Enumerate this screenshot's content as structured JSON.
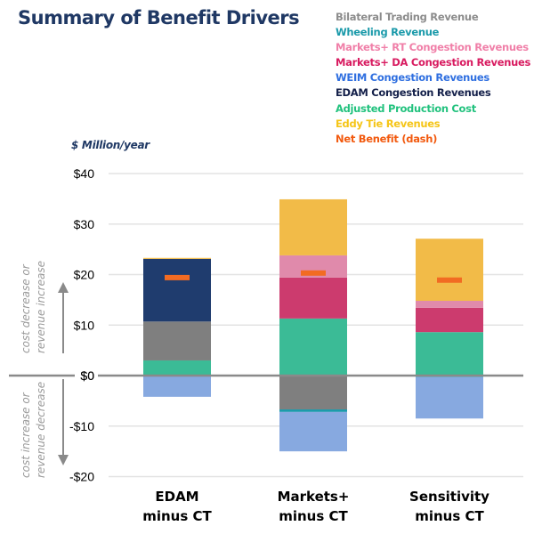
{
  "chart_data": {
    "type": "bar",
    "stacked": true,
    "title": "Summary of Benefit Drivers",
    "ylabel": "$ Million/year",
    "xlabel": "",
    "ylim": [
      -20,
      40
    ],
    "yticks": [
      40,
      30,
      20,
      10,
      0,
      -10,
      -20
    ],
    "ytick_labels": [
      "$40",
      "$30",
      "$20",
      "$10",
      "$0",
      "-$10",
      "-$20"
    ],
    "grid": true,
    "legend_position": "top-right",
    "categories": [
      {
        "line1": "EDAM",
        "line2": "minus CT"
      },
      {
        "line1": "Markets+",
        "line2": "minus CT"
      },
      {
        "line1": "Sensitivity",
        "line2": "minus CT"
      }
    ],
    "series": [
      {
        "name": "Adjusted Production Cost",
        "color": "#3bbb96",
        "values": [
          3.0,
          11.3,
          8.6
        ]
      },
      {
        "name": "Bilateral Trading Revenue",
        "color": "#7f7f7f",
        "values": [
          7.7,
          -6.7,
          0
        ]
      },
      {
        "name": "Wheeling Revenue",
        "color": "#1b9aaa",
        "values": [
          0,
          -0.5,
          -0.3
        ]
      },
      {
        "name": "WEIM Congestion Revenues",
        "color": "#87a9e0",
        "values": [
          -4.2,
          -7.8,
          -8.2
        ]
      },
      {
        "name": "EDAM Congestion Revenues",
        "color": "#1f3c6e",
        "values": [
          12.4,
          0,
          0
        ]
      },
      {
        "name": "Markets+ DA Congestion Revenues",
        "color": "#cc3b6e",
        "values": [
          0,
          8.1,
          4.8
        ]
      },
      {
        "name": "Markets+ RT Congestion Revenues",
        "color": "#e08aab",
        "values": [
          0,
          4.4,
          1.4
        ]
      },
      {
        "name": "Eddy Tie Revenues",
        "color": "#f2bb48",
        "values": [
          0.2,
          11.1,
          12.3
        ]
      }
    ],
    "net_benefit": {
      "name": "Net Benefit (dash)",
      "color": "#f26b22",
      "values": [
        19.4,
        20.3,
        18.9
      ]
    },
    "annotations": {
      "up": [
        "cost decrease or",
        "revenue increase"
      ],
      "down": [
        "cost increase or",
        "revenue decrease"
      ]
    }
  },
  "legend": [
    {
      "label": "Bilateral Trading Revenue",
      "color": "#8c8c8c"
    },
    {
      "label": "Wheeling Revenue",
      "color": "#1b9aaa"
    },
    {
      "label": "Markets+ RT Congestion Revenues",
      "color": "#f07fa8"
    },
    {
      "label": "Markets+ DA Congestion Revenues",
      "color": "#d81b60"
    },
    {
      "label": "WEIM Congestion Revenues",
      "color": "#2f6fe0"
    },
    {
      "label": "EDAM Congestion Revenues",
      "color": "#14204a"
    },
    {
      "label": "Adjusted Production Cost",
      "color": "#22c27e"
    },
    {
      "label": "Eddy Tie Revenues",
      "color": "#f5c518"
    },
    {
      "label": "Net Benefit (dash)",
      "color": "#f25a0f"
    }
  ]
}
